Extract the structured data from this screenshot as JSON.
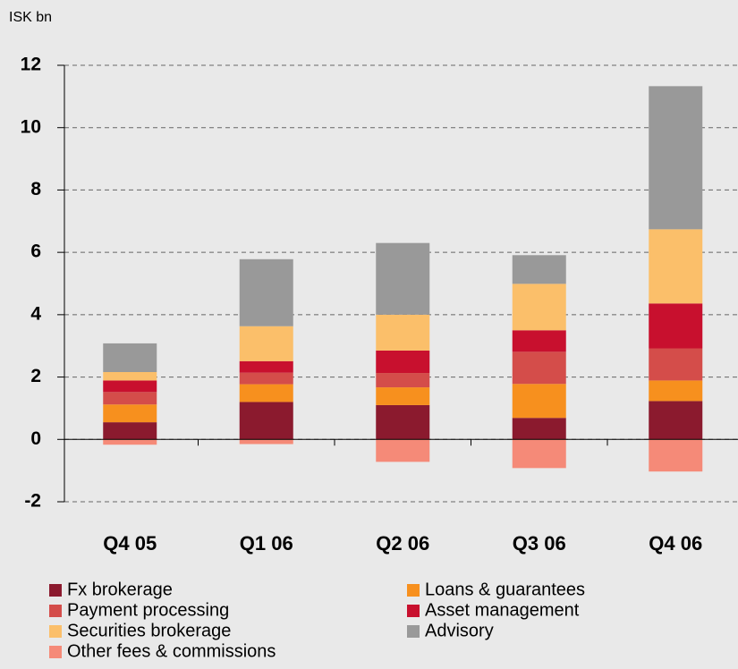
{
  "chart_data": {
    "type": "stacked_bar",
    "y_axis_label": "ISK bn",
    "categories": [
      "Q4 05",
      "Q1 06",
      "Q2 06",
      "Q3 06",
      "Q4 06"
    ],
    "series": [
      {
        "name": "Fx brokerage",
        "color": "#8b1a2e",
        "values": [
          0.55,
          1.2,
          1.1,
          0.69,
          1.23
        ]
      },
      {
        "name": "Loans & guarantees",
        "color": "#f7901e",
        "values": [
          0.57,
          0.57,
          0.57,
          1.09,
          0.66
        ]
      },
      {
        "name": "Payment processing",
        "color": "#d44d4a",
        "values": [
          0.4,
          0.37,
          0.46,
          1.03,
          1.03
        ]
      },
      {
        "name": "Asset management",
        "color": "#c8102e",
        "values": [
          0.37,
          0.37,
          0.72,
          0.69,
          1.44
        ]
      },
      {
        "name": "Securities brokerage",
        "color": "#fbbf6a",
        "values": [
          0.27,
          1.12,
          1.15,
          1.49,
          2.38
        ]
      },
      {
        "name": "Advisory",
        "color": "#999999",
        "values": [
          0.92,
          2.15,
          2.3,
          0.92,
          4.59
        ]
      },
      {
        "name": "Other fees & commissions",
        "color": "#f58a78",
        "values": [
          -0.17,
          -0.15,
          -0.72,
          -0.92,
          -1.03
        ]
      }
    ],
    "ylim": [
      -2,
      12
    ],
    "yticks": [
      -2,
      0,
      2,
      4,
      6,
      8,
      10,
      12
    ],
    "grid": true
  }
}
